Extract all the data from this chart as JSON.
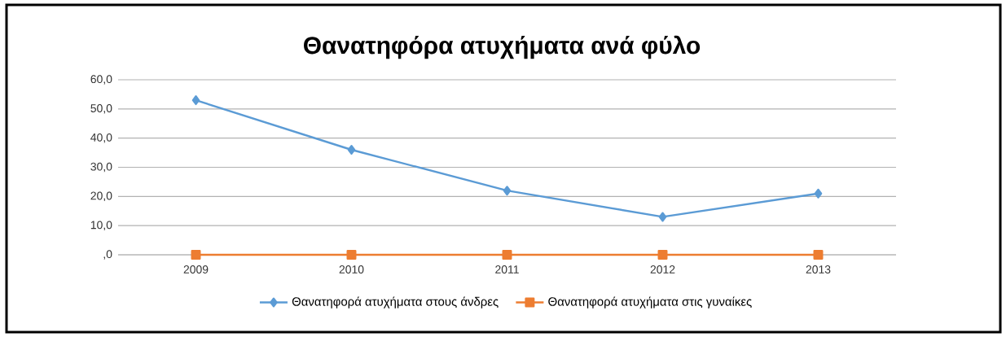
{
  "chart_data": {
    "type": "line",
    "title": "Θανατηφόρα ατυχήματα ανά φύλο",
    "categories": [
      "2009",
      "2010",
      "2011",
      "2012",
      "2013"
    ],
    "series": [
      {
        "name": "Θανατηφορά ατυχήματα στους άνδρες",
        "color": "#5b9bd5",
        "marker": "diamond",
        "values": [
          53,
          36,
          22,
          13,
          21
        ]
      },
      {
        "name": "Θανατηφορά ατυχήματα στις γυναίκες",
        "color": "#ed7d31",
        "marker": "square",
        "values": [
          0,
          0,
          0,
          0,
          0
        ]
      }
    ],
    "ylim": [
      0,
      60
    ],
    "yticks": [
      {
        "value": 0,
        "label": ",0"
      },
      {
        "value": 10,
        "label": "10,0"
      },
      {
        "value": 20,
        "label": "20,0"
      },
      {
        "value": 30,
        "label": "30,0"
      },
      {
        "value": 40,
        "label": "40,0"
      },
      {
        "value": 50,
        "label": "50,0"
      },
      {
        "value": 60,
        "label": "60,0"
      }
    ],
    "grid": "y",
    "legend": "bottom",
    "line_style": "solid"
  }
}
